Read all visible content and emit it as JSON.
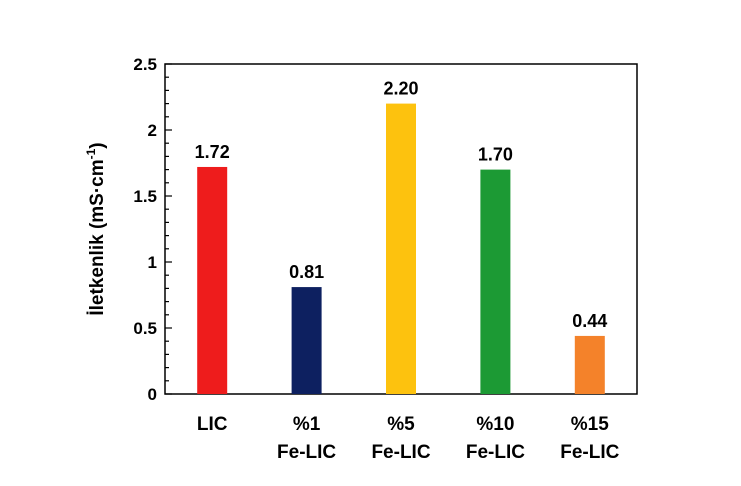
{
  "chart_data": {
    "type": "bar",
    "categories": [
      [
        "LIC"
      ],
      [
        "%1",
        "Fe-LIC"
      ],
      [
        "%5",
        "Fe-LIC"
      ],
      [
        "%10",
        "Fe-LIC"
      ],
      [
        "%15",
        "Fe-LIC"
      ]
    ],
    "values": [
      1.72,
      0.81,
      2.2,
      1.7,
      0.44
    ],
    "value_labels": [
      "1.72",
      "0.81",
      "2.20",
      "1.70",
      "0.44"
    ],
    "colors": [
      "#ee1c1c",
      "#0d2060",
      "#fdc20e",
      "#1c9a34",
      "#f4822a"
    ],
    "ylabel": {
      "main": "İletkenlik (mS·cm",
      "superscript": "-1",
      "close": ")"
    },
    "ylim": [
      0,
      2.5
    ],
    "yticks": [
      {
        "value": 0,
        "label": "0"
      },
      {
        "value": 0.5,
        "label": "0.5"
      },
      {
        "value": 1,
        "label": "1"
      },
      {
        "value": 1.5,
        "label": "1.5"
      },
      {
        "value": 2,
        "label": "2"
      },
      {
        "value": 2.5,
        "label": "2.5"
      }
    ],
    "minor_tick_step": 0.1,
    "grid": false,
    "legend": "none"
  }
}
